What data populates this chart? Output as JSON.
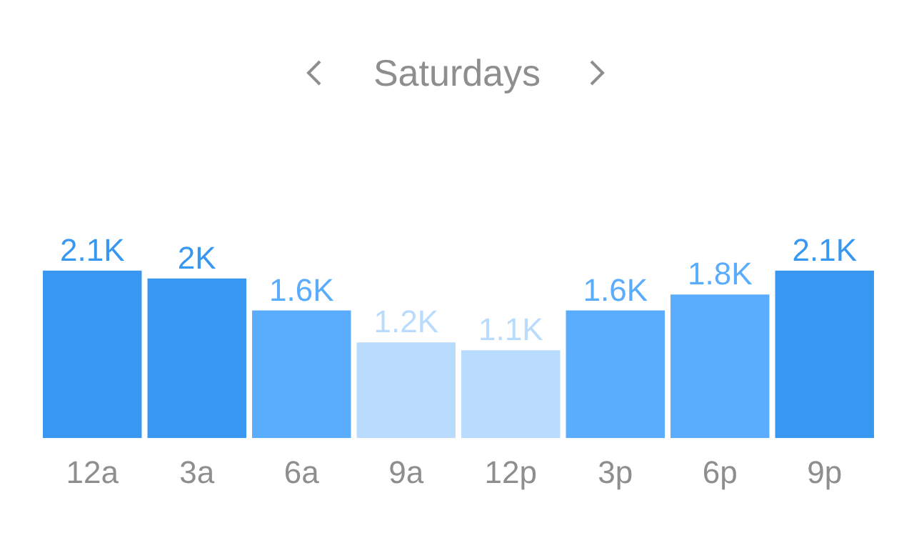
{
  "chart_data": {
    "type": "bar",
    "title": "Saturdays",
    "categories": [
      "12a",
      "3a",
      "6a",
      "9a",
      "12p",
      "3p",
      "6p",
      "9p"
    ],
    "values": [
      2100,
      2000,
      1600,
      1200,
      1100,
      1600,
      1800,
      2100
    ],
    "colors": [
      "#3897f0",
      "#3897f0",
      "#5aacfd",
      "#b9dbfd",
      "#b9dbfd",
      "#5aacfd",
      "#5aacfd",
      "#3897f0"
    ],
    "value_labels": [
      "2.1K",
      "2K",
      "1.6K",
      "1.2K",
      "1.1K",
      "1.6K",
      "1.8K",
      "2.1K"
    ],
    "grid": false,
    "legend": false
  }
}
